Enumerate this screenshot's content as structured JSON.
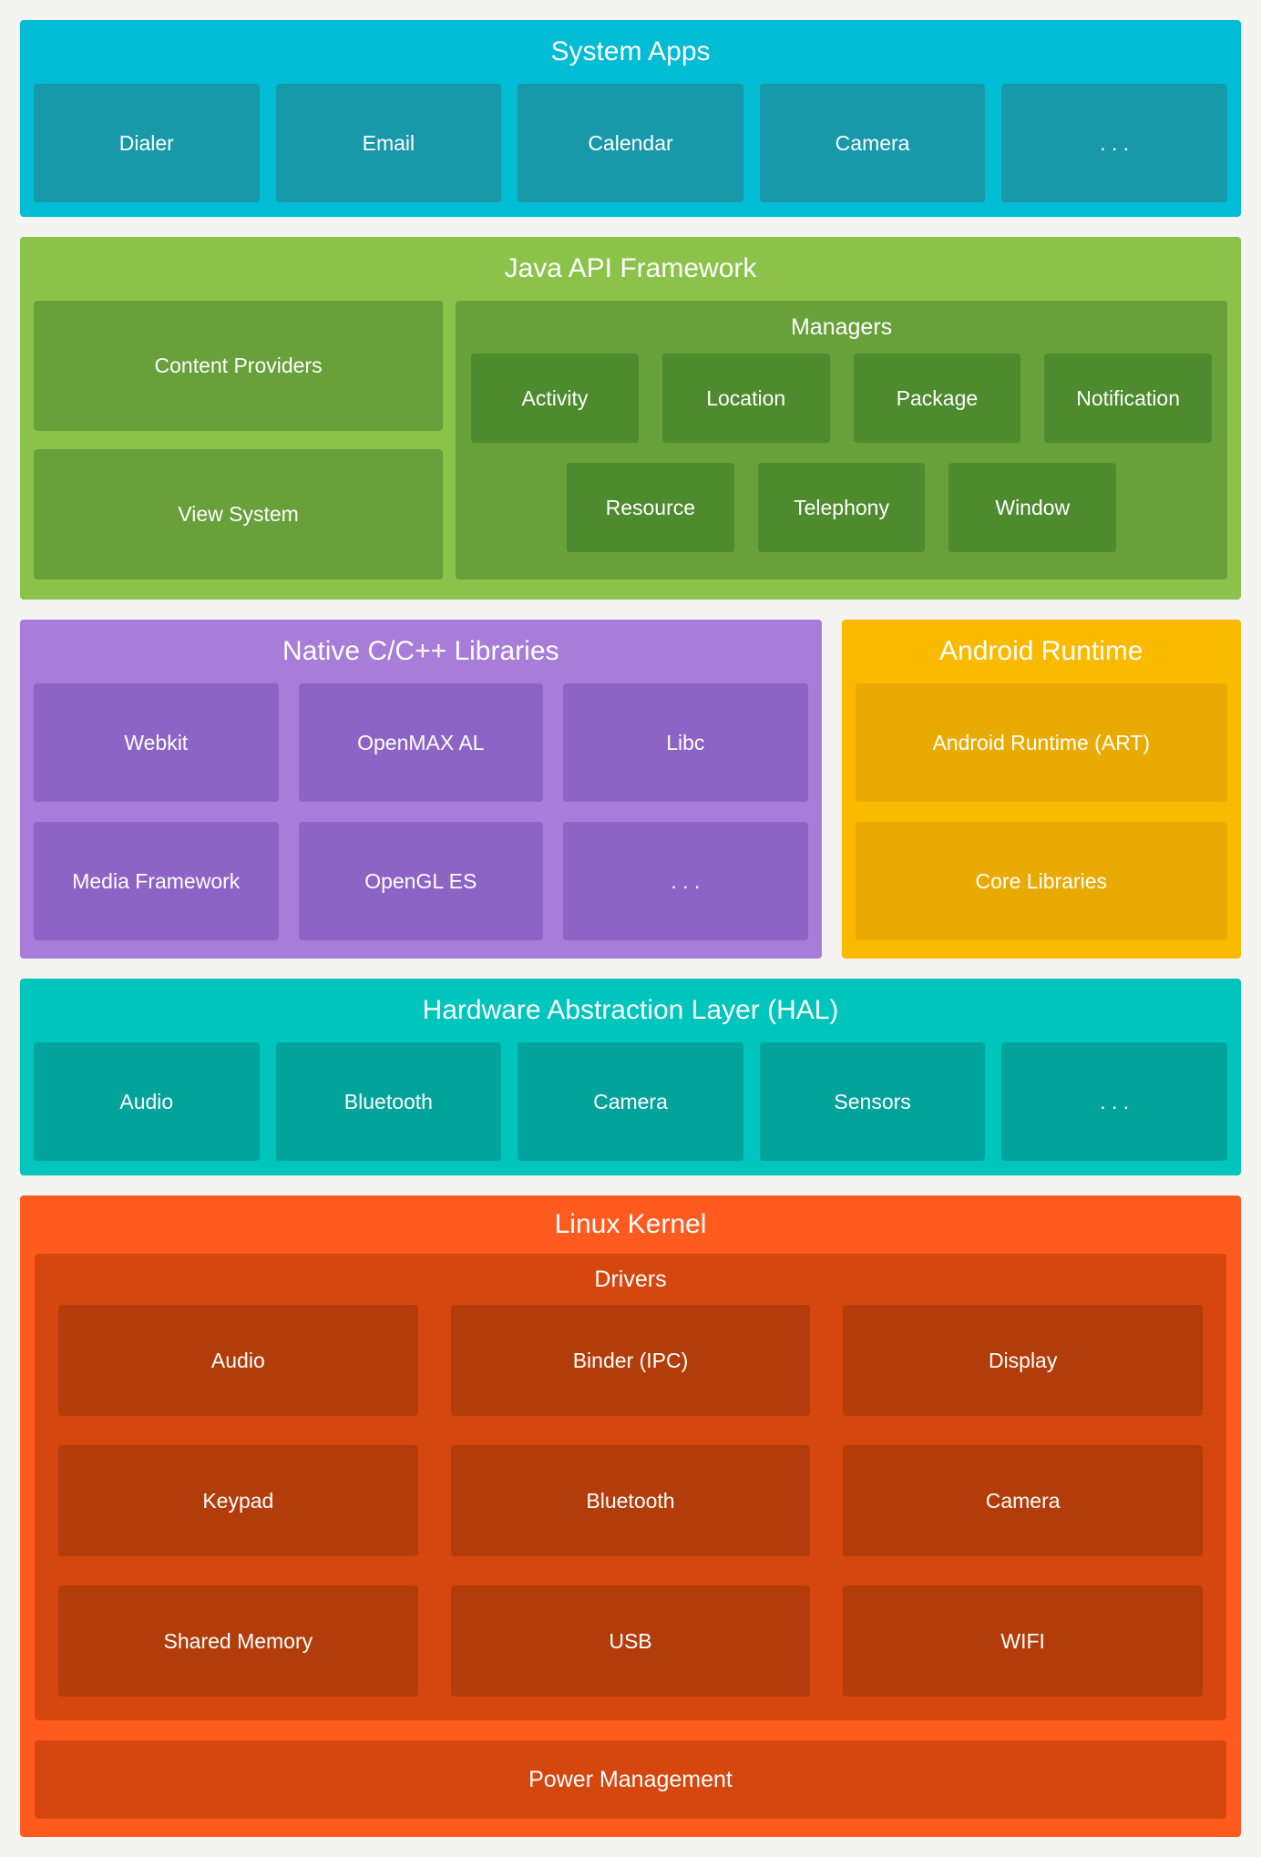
{
  "colors": {
    "background": "#f4f4f3",
    "text": "#ffffff",
    "system_apps_outer": "#00bcd4",
    "system_apps_box": "#1799a9",
    "java_outer": "#8bc34a",
    "java_box": "#68a03a",
    "java_manager_box": "#4e8a2e",
    "native_outer": "#a87cd9",
    "native_box": "#8d64c6",
    "runtime_outer": "#fbba00",
    "runtime_box": "#e9ab03",
    "hal_outer": "#00c5bc",
    "hal_box": "#02a39b",
    "kernel_outer": "#ff5b1f",
    "kernel_container": "#d5470e",
    "kernel_box": "#b33d0a"
  },
  "system_apps": {
    "title": "System Apps",
    "items": [
      "Dialer",
      "Email",
      "Calendar",
      "Camera",
      ". . ."
    ]
  },
  "java_api": {
    "title": "Java API Framework",
    "left_items": [
      "Content Providers",
      "View System"
    ],
    "managers": {
      "title": "Managers",
      "row1": [
        "Activity",
        "Location",
        "Package",
        "Notification"
      ],
      "row2": [
        "Resource",
        "Telephony",
        "Window"
      ]
    }
  },
  "native_libs": {
    "title": "Native C/C++ Libraries",
    "items": [
      "Webkit",
      "OpenMAX AL",
      "Libc",
      "Media Framework",
      "OpenGL ES",
      ". . ."
    ]
  },
  "android_runtime": {
    "title": "Android Runtime",
    "items": [
      "Android Runtime (ART)",
      "Core Libraries"
    ]
  },
  "hal": {
    "title": "Hardware Abstraction Layer (HAL)",
    "items": [
      "Audio",
      "Bluetooth",
      "Camera",
      "Sensors",
      ". . ."
    ]
  },
  "linux_kernel": {
    "title": "Linux Kernel",
    "drivers": {
      "title": "Drivers",
      "row1": [
        "Audio",
        "Binder (IPC)",
        "Display"
      ],
      "row2": [
        "Keypad",
        "Bluetooth",
        "Camera"
      ],
      "row3": [
        "Shared Memory",
        "USB",
        "WIFI"
      ]
    },
    "power_label": "Power Management"
  }
}
